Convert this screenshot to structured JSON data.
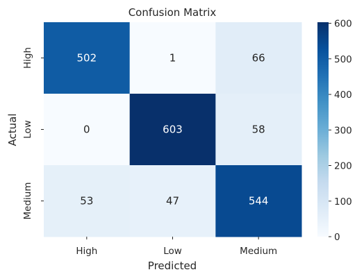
{
  "chart_data": {
    "type": "heatmap",
    "title": "Confusion Matrix",
    "xlabel": "Predicted",
    "ylabel": "Actual",
    "x_categories": [
      "High",
      "Low",
      "Medium"
    ],
    "y_categories": [
      "High",
      "Low",
      "Medium"
    ],
    "matrix": [
      [
        502,
        1,
        66
      ],
      [
        0,
        603,
        58
      ],
      [
        53,
        47,
        544
      ]
    ],
    "colormap": "Blues",
    "colorbar": {
      "range": [
        0,
        603
      ],
      "ticks": [
        0,
        100,
        200,
        300,
        400,
        500,
        600
      ]
    }
  }
}
